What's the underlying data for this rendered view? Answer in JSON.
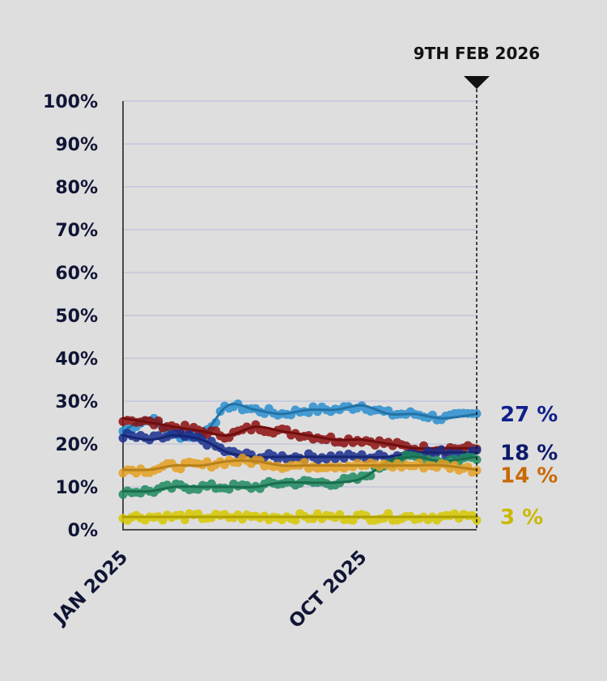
{
  "chart_data": {
    "type": "line",
    "ylim": [
      0,
      100
    ],
    "yticks": [
      0,
      10,
      20,
      30,
      40,
      50,
      60,
      70,
      80,
      90,
      100
    ],
    "ytick_labels": [
      "0%",
      "10%",
      "20%",
      "30%",
      "40%",
      "50%",
      "60%",
      "70%",
      "80%",
      "90%",
      "100%"
    ],
    "xlim": [
      "2025-01-01",
      "2026-02-09"
    ],
    "xtick_labels": [
      {
        "date": "2025-01-01",
        "label": "JAN 2025"
      },
      {
        "date": "2025-10-01",
        "label": "OCT 2025"
      }
    ],
    "grid": true,
    "marker": {
      "date": "2026-02-09",
      "label": "9TH FEB 2026"
    },
    "series": [
      {
        "color": "#2a8fcf",
        "end_label": "27 %",
        "label_color": "#12208a",
        "x": [
          "2025-01-01",
          "2025-02-01",
          "2025-03-01",
          "2025-04-01",
          "2025-05-01",
          "2025-06-01",
          "2025-07-01",
          "2025-08-01",
          "2025-09-01",
          "2025-10-01",
          "2025-11-01",
          "2025-12-01",
          "2026-01-01",
          "2026-02-09"
        ],
        "y": [
          23,
          26,
          22,
          22,
          29,
          28,
          27,
          28,
          28,
          29,
          27,
          27,
          26,
          27
        ]
      },
      {
        "color": "#8c1010",
        "x": [
          "2025-01-01",
          "2025-02-01",
          "2025-03-01",
          "2025-04-01",
          "2025-05-01",
          "2025-06-01",
          "2025-07-01",
          "2025-08-01",
          "2025-09-01",
          "2025-10-01",
          "2025-11-01",
          "2025-12-01",
          "2026-01-01",
          "2026-02-09"
        ],
        "y": [
          26,
          25,
          24,
          23,
          22,
          24,
          23,
          22,
          21,
          21,
          20,
          19,
          19,
          19
        ]
      },
      {
        "color": "#1a2f8f",
        "end_label": "18 %",
        "label_color": "#0c1a6b",
        "x": [
          "2025-01-01",
          "2025-02-01",
          "2025-03-01",
          "2025-04-01",
          "2025-05-01",
          "2025-06-01",
          "2025-07-01",
          "2025-08-01",
          "2025-09-01",
          "2025-10-01",
          "2025-11-01",
          "2025-12-01",
          "2026-01-01",
          "2026-02-09"
        ],
        "y": [
          22,
          21,
          22,
          21,
          18,
          17,
          17,
          17,
          17,
          17,
          17,
          18,
          18,
          18
        ]
      },
      {
        "color": "#1f8a60",
        "x": [
          "2025-01-01",
          "2025-02-01",
          "2025-03-01",
          "2025-04-01",
          "2025-05-01",
          "2025-06-01",
          "2025-07-01",
          "2025-08-01",
          "2025-09-01",
          "2025-10-01",
          "2025-11-01",
          "2025-12-01",
          "2026-01-01",
          "2026-02-09"
        ],
        "y": [
          9,
          9,
          10,
          10,
          10,
          10,
          11,
          11,
          11,
          12,
          16,
          17,
          16,
          17
        ]
      },
      {
        "color": "#e6a020",
        "end_label": "14 %",
        "label_color": "#c96a05",
        "x": [
          "2025-01-01",
          "2025-02-01",
          "2025-03-01",
          "2025-04-01",
          "2025-05-01",
          "2025-06-01",
          "2025-07-01",
          "2025-08-01",
          "2025-09-01",
          "2025-10-01",
          "2025-11-01",
          "2025-12-01",
          "2026-01-01",
          "2026-02-09"
        ],
        "y": [
          14,
          14,
          15,
          15,
          16,
          16,
          15,
          15,
          15,
          15,
          15,
          15,
          15,
          14
        ]
      },
      {
        "color": "#d8c800",
        "end_label": "3 %",
        "label_color": "#cbb800",
        "x": [
          "2025-01-01",
          "2025-02-01",
          "2025-03-01",
          "2025-04-01",
          "2025-05-01",
          "2025-06-01",
          "2025-07-01",
          "2025-08-01",
          "2025-09-01",
          "2025-10-01",
          "2025-11-01",
          "2025-12-01",
          "2026-01-01",
          "2026-02-09"
        ],
        "y": [
          3,
          3,
          3,
          3,
          3,
          3,
          3,
          3,
          3,
          3,
          3,
          3,
          3,
          3
        ]
      }
    ]
  }
}
